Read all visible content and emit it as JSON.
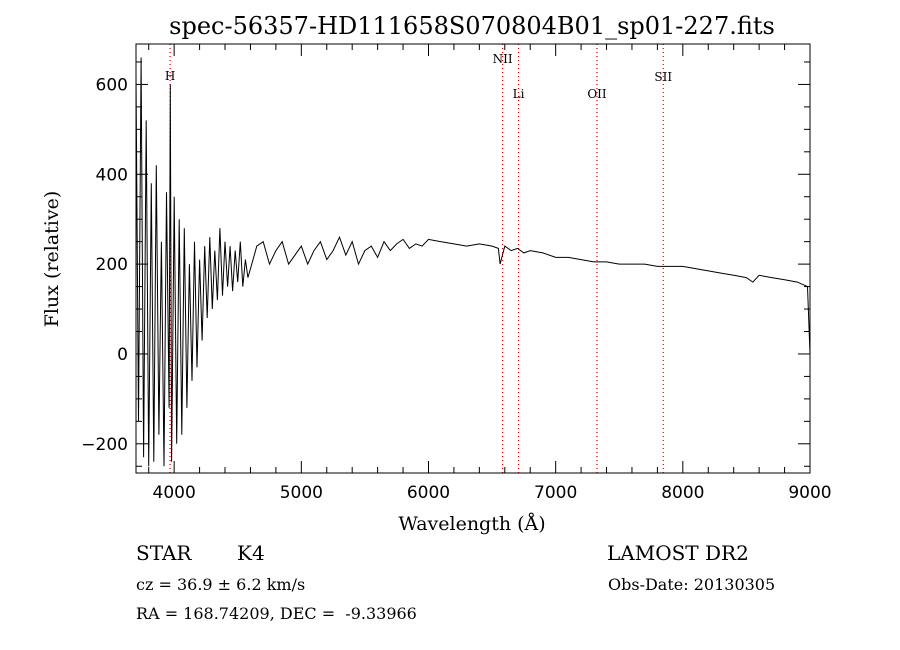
{
  "chart_data": {
    "type": "line",
    "title": "spec-56357-HD111658S070804B01_sp01-227.fits",
    "xlabel": "Wavelength (Å)",
    "ylabel": "Flux (relative)",
    "xlim": [
      3700,
      9000
    ],
    "ylim": [
      -265,
      690
    ],
    "x_ticks": [
      4000,
      5000,
      6000,
      7000,
      8000,
      9000
    ],
    "x_tick_labels": [
      "4000",
      "5000",
      "6000",
      "7000",
      "8000",
      "9000"
    ],
    "y_ticks": [
      -200,
      0,
      200,
      400,
      600
    ],
    "y_tick_labels": [
      "−200",
      "0",
      "200",
      "400",
      "600"
    ],
    "x_minor_step": 200,
    "y_minor_step": 50,
    "grid": false,
    "line_color": "#000000",
    "marker_color": "#cc0000",
    "series": [
      {
        "x": [
          3700,
          3720,
          3740,
          3760,
          3780,
          3800,
          3820,
          3840,
          3860,
          3880,
          3900,
          3920,
          3940,
          3960,
          3970,
          3980,
          4000,
          4020,
          4040,
          4060,
          4080,
          4100,
          4120,
          4140,
          4160,
          4180,
          4200,
          4220,
          4240,
          4260,
          4280,
          4300,
          4320,
          4340,
          4360,
          4380,
          4400,
          4420,
          4440,
          4460,
          4480,
          4500,
          4520,
          4540,
          4560,
          4580,
          4600,
          4650,
          4700,
          4750,
          4800,
          4850,
          4900,
          4950,
          5000,
          5050,
          5100,
          5150,
          5200,
          5250,
          5300,
          5350,
          5400,
          5450,
          5500,
          5550,
          5600,
          5650,
          5700,
          5750,
          5800,
          5850,
          5900,
          5950,
          6000,
          6100,
          6200,
          6300,
          6400,
          6500,
          6550,
          6563,
          6600,
          6650,
          6700,
          6750,
          6800,
          6900,
          7000,
          7100,
          7200,
          7300,
          7400,
          7500,
          7600,
          7700,
          7800,
          7900,
          8000,
          8100,
          8200,
          8300,
          8400,
          8500,
          8550,
          8600,
          8700,
          8800,
          8900,
          8980,
          9000
        ],
        "y": [
          620,
          -150,
          660,
          -230,
          520,
          -250,
          380,
          -240,
          420,
          -180,
          250,
          -250,
          360,
          -120,
          600,
          -240,
          350,
          -200,
          300,
          -180,
          280,
          -120,
          200,
          -60,
          250,
          -30,
          210,
          30,
          240,
          80,
          260,
          100,
          230,
          120,
          280,
          130,
          250,
          150,
          240,
          140,
          230,
          160,
          250,
          150,
          210,
          170,
          190,
          240,
          250,
          200,
          230,
          250,
          200,
          220,
          240,
          200,
          230,
          250,
          210,
          230,
          260,
          220,
          250,
          200,
          230,
          240,
          215,
          250,
          230,
          245,
          255,
          235,
          245,
          240,
          255,
          250,
          245,
          240,
          245,
          240,
          235,
          200,
          240,
          230,
          235,
          225,
          230,
          225,
          215,
          215,
          210,
          205,
          205,
          200,
          200,
          200,
          195,
          195,
          195,
          190,
          185,
          180,
          175,
          170,
          160,
          175,
          170,
          165,
          160,
          150,
          0
        ]
      }
    ],
    "lines": [
      {
        "label": "H",
        "x": 3968
      },
      {
        "label": "NII",
        "x": 6583
      },
      {
        "label": "Li",
        "x": 6708
      },
      {
        "label": "OII",
        "x": 7325
      },
      {
        "label": "SII",
        "x": 7846
      }
    ]
  },
  "info": {
    "object_class": "STAR",
    "subclass": "K4",
    "survey": "LAMOST DR2",
    "velocity": "cz = 36.9 ± 6.2 km/s",
    "obs_date": "Obs-Date: 20130305",
    "coords": "RA = 168.74209, DEC =  -9.33966"
  }
}
